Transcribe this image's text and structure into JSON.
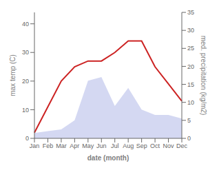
{
  "chart_data": {
    "type": "line",
    "xlabel": "date (month)",
    "ylabel": "max temp (C)",
    "y2label": "med. precipitation (kg/m2)",
    "categories": [
      "Jan",
      "Feb",
      "Mar",
      "Apr",
      "May",
      "Jun",
      "Jul",
      "Aug",
      "Sep",
      "Oct",
      "Nov",
      "Dec"
    ],
    "series": [
      {
        "type": "area",
        "axis": "y2",
        "color": "#b0b8e8",
        "values": [
          1.5,
          2.0,
          2.5,
          5.0,
          16.0,
          17.0,
          9.0,
          14.0,
          8.0,
          6.5,
          6.5,
          5.5
        ]
      },
      {
        "type": "line",
        "color": "#cc2222",
        "values": [
          2,
          11,
          20,
          25,
          27,
          27,
          30,
          34,
          34,
          25,
          19,
          13
        ]
      }
    ],
    "ylim": [
      0,
      44
    ],
    "yticks": [
      0,
      10,
      20,
      30,
      40
    ],
    "y2lim": [
      0,
      35
    ],
    "y2ticks": [
      0,
      5,
      10,
      15,
      20,
      25,
      30,
      35
    ]
  }
}
